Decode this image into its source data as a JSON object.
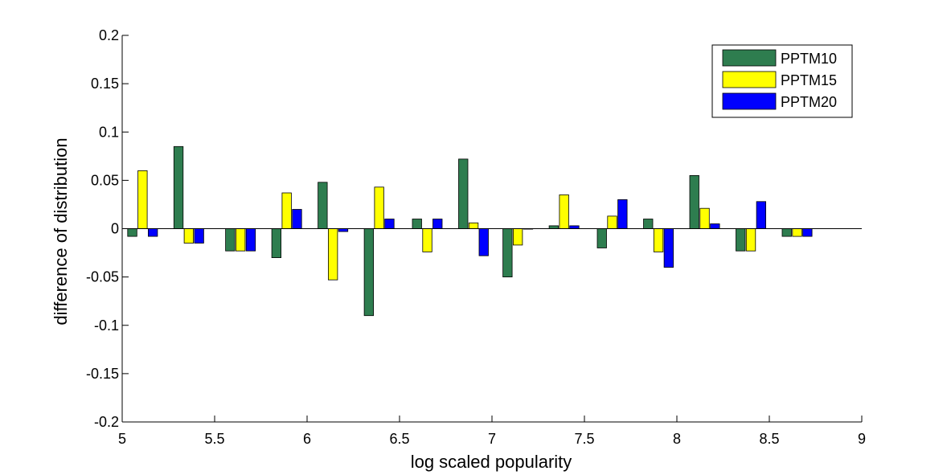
{
  "chart_data": {
    "type": "bar",
    "title": "",
    "xlabel": "log scaled popularity",
    "ylabel": "difference of distribution",
    "xlim": [
      5,
      9
    ],
    "ylim": [
      -0.2,
      0.2
    ],
    "x_ticks": [
      "5",
      "5.5",
      "6",
      "6.5",
      "7",
      "7.5",
      "8",
      "8.5",
      "9"
    ],
    "y_ticks": [
      "0.2",
      "0.15",
      "0.1",
      "0.05",
      "0",
      "-0.05",
      "-0.1",
      "-0.15",
      "-0.2"
    ],
    "x": [
      5.11,
      5.36,
      5.64,
      5.89,
      6.14,
      6.39,
      6.65,
      6.9,
      7.14,
      7.39,
      7.65,
      7.9,
      8.15,
      8.4,
      8.65
    ],
    "series": [
      {
        "name": "PPTM10",
        "color": "#2e7d4f",
        "values": [
          -0.008,
          0.085,
          -0.023,
          -0.03,
          0.048,
          -0.09,
          0.01,
          0.072,
          -0.05,
          0.003,
          -0.02,
          0.01,
          0.055,
          -0.023,
          -0.008
        ]
      },
      {
        "name": "PPTM15",
        "color": "#ffff00",
        "values": [
          0.06,
          -0.015,
          -0.023,
          0.037,
          -0.053,
          0.043,
          -0.024,
          0.006,
          -0.017,
          0.035,
          0.013,
          -0.024,
          0.021,
          -0.023,
          -0.008
        ]
      },
      {
        "name": "PPTM20",
        "color": "#0000ff",
        "values": [
          -0.008,
          -0.015,
          -0.023,
          0.02,
          -0.003,
          0.01,
          0.01,
          -0.028,
          0.0,
          0.003,
          0.03,
          -0.04,
          0.005,
          0.028,
          -0.008
        ]
      }
    ],
    "legend_position": "top-right",
    "grid": false
  }
}
